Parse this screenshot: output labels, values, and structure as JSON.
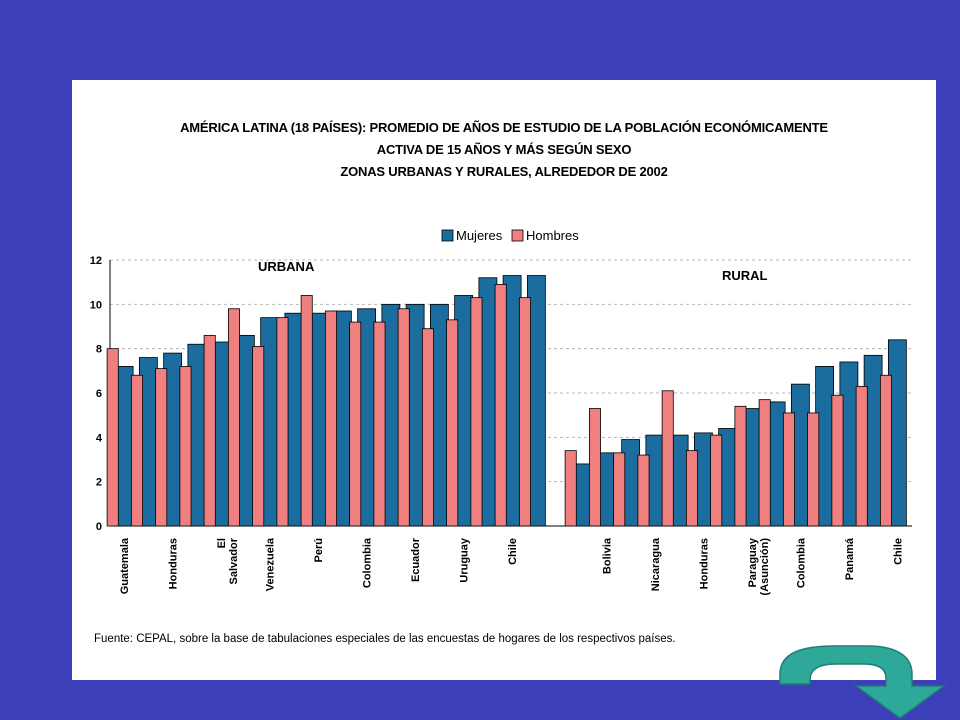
{
  "chart_data": {
    "type": "bar",
    "title_lines": [
      "AMÉRICA LATINA (18 PAÍSES): PROMEDIO DE AÑOS DE ESTUDIO DE LA POBLACIÓN ECONÓMICAMENTE",
      "ACTIVA DE 15 AÑOS Y MÁS SEGÚN SEXO",
      "ZONAS URBANAS Y RURALES, ALREDEDOR DE 2002"
    ],
    "ylim": [
      0,
      12
    ],
    "yticks": [
      "0",
      "2",
      "4",
      "6",
      "8",
      "10",
      "12"
    ],
    "grid": true,
    "legend_position": "top-center",
    "legend": [
      {
        "name": "Mujeres",
        "color": "#1a6d9e"
      },
      {
        "name": "Hombres",
        "color": "#f08080"
      }
    ],
    "groups": [
      {
        "label": "URBANA",
        "categories": [
          "Guatemala",
          "",
          "Honduras",
          "",
          "El Salvador",
          "",
          "Venezuela",
          "",
          "Perú",
          "",
          "Colombia",
          "",
          "Ecuador",
          "",
          "Uruguay",
          "",
          "Chile",
          ""
        ],
        "mujeres": [
          7.2,
          7.6,
          7.8,
          8.2,
          8.3,
          8.6,
          9.4,
          9.6,
          9.6,
          9.7,
          9.8,
          10.0,
          10.0,
          10.0,
          10.4,
          11.2,
          11.3,
          11.3
        ],
        "hombres": [
          8.0,
          6.8,
          7.1,
          7.2,
          8.6,
          9.8,
          8.1,
          9.4,
          10.4,
          9.7,
          9.2,
          9.2,
          9.8,
          8.9,
          9.3,
          10.3,
          10.9,
          10.3
        ]
      },
      {
        "label": "RURAL",
        "categories": [
          "",
          "Bolivia",
          "",
          "Nicaragua",
          "",
          "Honduras",
          "",
          "Paraguay (Asunción)",
          "",
          "Colombia",
          "",
          "Panamá",
          "",
          "Chile"
        ],
        "mujeres": [
          2.8,
          3.3,
          3.9,
          4.1,
          4.1,
          4.2,
          4.4,
          5.3,
          5.6,
          6.4,
          7.2,
          7.4,
          7.7,
          8.4
        ],
        "hombres": [
          3.4,
          5.3,
          3.3,
          3.2,
          6.1,
          3.4,
          4.1,
          5.4,
          5.7,
          5.1,
          5.1,
          5.9,
          6.3,
          6.8
        ]
      }
    ]
  },
  "source_text": "Fuente: CEPAL, sobre la base de  tabulaciones especiales de las encuestas de hogares de los respectivos países.",
  "colors": {
    "background": "#3b3fb8",
    "panel": "#ffffff",
    "mujeres": "#1a6d9e",
    "hombres": "#f08080",
    "arrow": "#2ea898"
  },
  "nav": {
    "icon": "curved-return-arrow-icon"
  }
}
